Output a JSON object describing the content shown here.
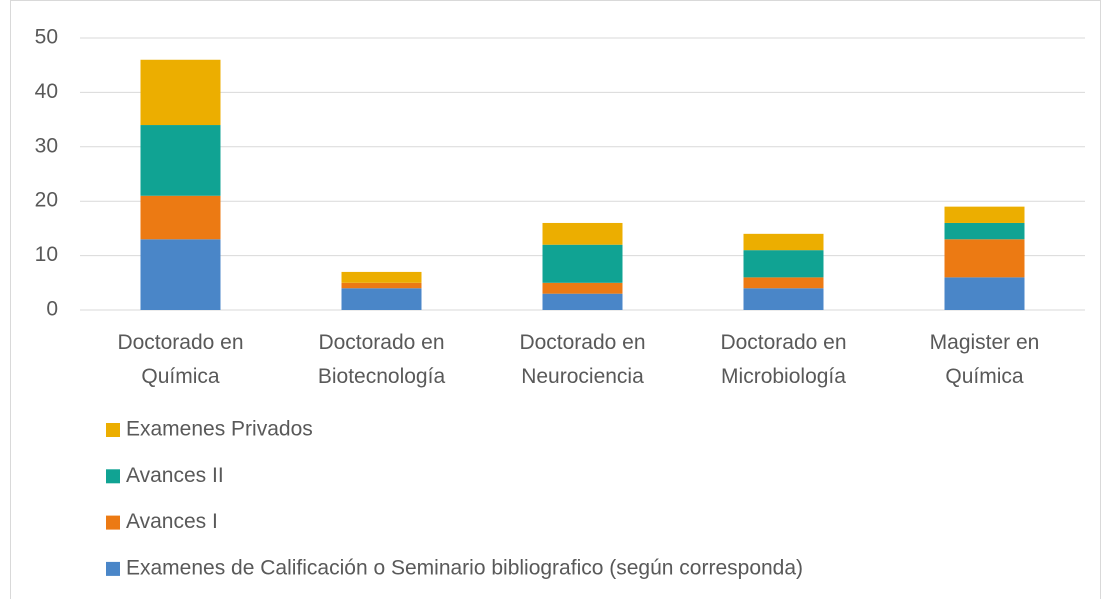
{
  "chart_data": {
    "type": "stacked_bar",
    "categories": [
      "Doctorado en\nQuímica",
      "Doctorado en\nBiotecnología",
      "Doctorado en\nNeurociencia",
      "Doctorado en\nMicrobiología",
      "Magister en\nQuímica"
    ],
    "series": [
      {
        "name": "Examenes de Calificación o Seminario bibliografico (según corresponda)",
        "color": "#4a86c8",
        "values": [
          13,
          4,
          3,
          4,
          6
        ]
      },
      {
        "name": "Avances I",
        "color": "#ec7a13",
        "values": [
          8,
          1,
          2,
          2,
          7
        ]
      },
      {
        "name": "Avances II",
        "color": "#10a393",
        "values": [
          13,
          0,
          7,
          5,
          3
        ]
      },
      {
        "name": "Examenes Privados",
        "color": "#ecae00",
        "values": [
          12,
          2,
          4,
          3,
          3
        ]
      }
    ],
    "ylim": [
      0,
      50
    ],
    "yticks": [
      0,
      10,
      20,
      30,
      40,
      50
    ],
    "grid": true
  }
}
